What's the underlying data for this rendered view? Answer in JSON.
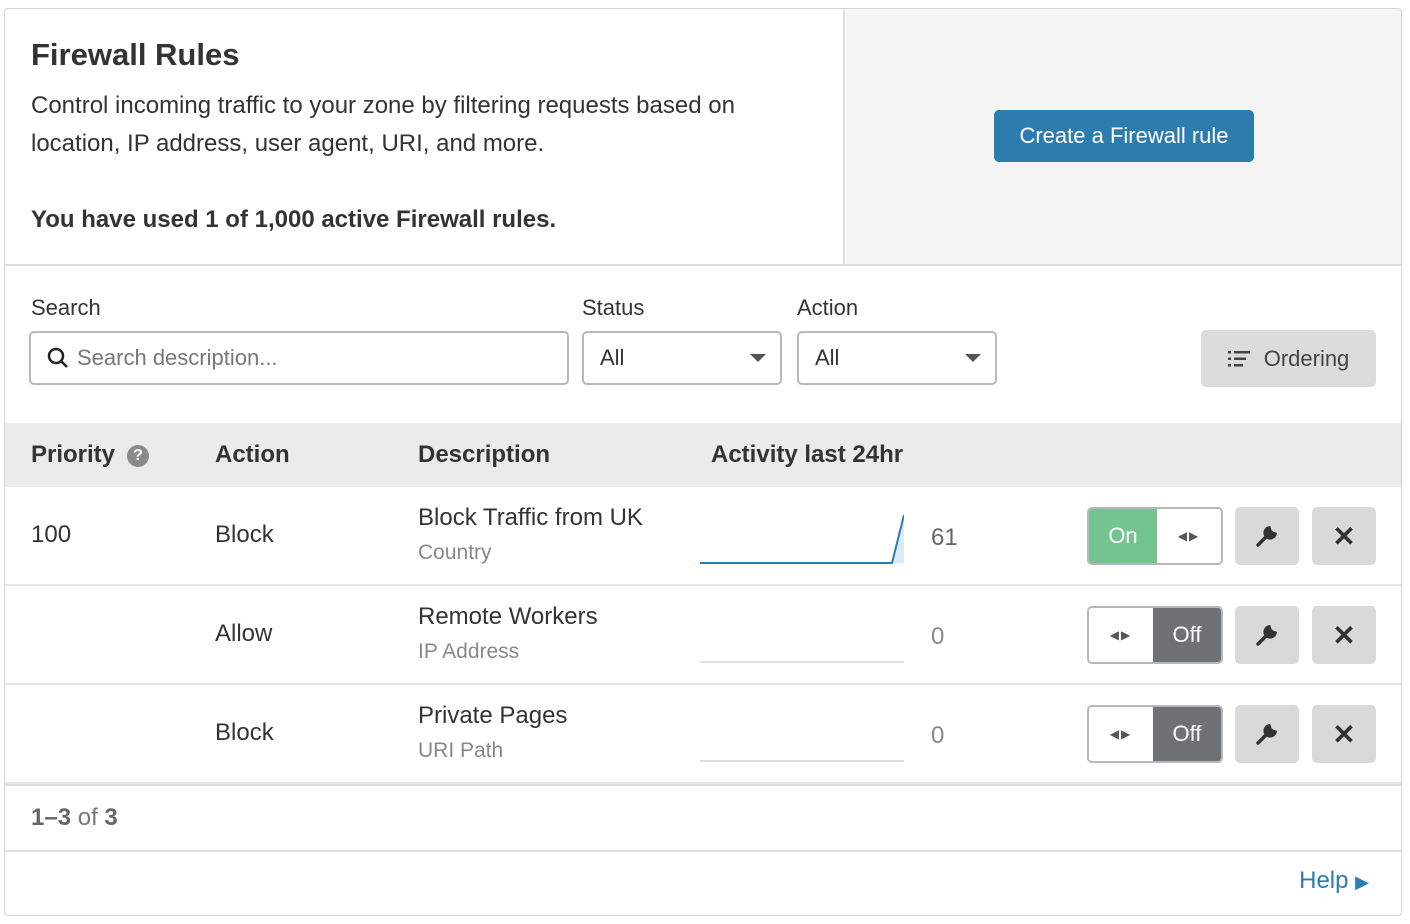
{
  "header": {
    "title": "Firewall Rules",
    "description": "Control incoming traffic to your zone by filtering requests based on location, IP address, user agent, URI, and more.",
    "usage": "You have used 1 of 1,000 active Firewall rules.",
    "create_button": "Create a Firewall rule"
  },
  "filters": {
    "search_label": "Search",
    "search_placeholder": "Search description...",
    "search_value": "",
    "status_label": "Status",
    "status_value": "All",
    "action_label": "Action",
    "action_value": "All",
    "ordering_button": "Ordering"
  },
  "table": {
    "columns": [
      "Priority",
      "Action",
      "Description",
      "Activity last 24hr"
    ],
    "rows": [
      {
        "priority": "100",
        "action": "Block",
        "description": "Block Traffic from UK",
        "field": "Country",
        "activity": "61",
        "enabled": true,
        "toggle_label": "On"
      },
      {
        "priority": "",
        "action": "Allow",
        "description": "Remote Workers",
        "field": "IP Address",
        "activity": "0",
        "enabled": false,
        "toggle_label": "Off"
      },
      {
        "priority": "",
        "action": "Block",
        "description": "Private Pages",
        "field": "URI Path",
        "activity": "0",
        "enabled": false,
        "toggle_label": "Off"
      }
    ]
  },
  "pagination": {
    "range": "1–3",
    "of": "of",
    "total": "3"
  },
  "help_link": "Help",
  "colors": {
    "primary": "#2c7cb0",
    "on": "#74c492",
    "off": "#6f7275"
  }
}
